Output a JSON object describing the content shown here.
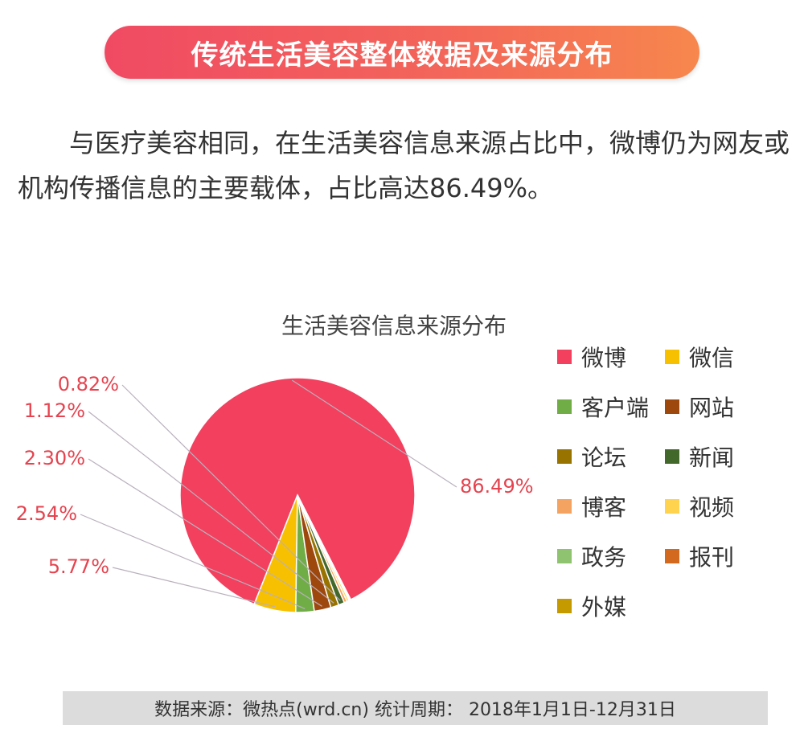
{
  "header": {
    "title": "传统生活美容整体数据及来源分布"
  },
  "intro": {
    "text": "与医疗美容相同，在生活美容信息来源占比中，微博仍为网友或机构传播信息的主要载体，占比高达86.49%。"
  },
  "chart_data": {
    "type": "pie",
    "title": "生活美容信息来源分布",
    "categories": [
      "微博",
      "微信",
      "客户端",
      "网站",
      "论坛",
      "新闻",
      "博客",
      "视频",
      "政务",
      "报刊",
      "外媒"
    ],
    "values": [
      86.49,
      5.77,
      2.54,
      2.3,
      1.12,
      0.82,
      0.4,
      0.3,
      0.1,
      0.1,
      0.06
    ],
    "data_labels": [
      {
        "category": "微博",
        "label": "86.49%"
      },
      {
        "category": "微信",
        "label": "5.77%"
      },
      {
        "category": "客户端",
        "label": "2.54%"
      },
      {
        "category": "网站",
        "label": "2.30%"
      },
      {
        "category": "论坛",
        "label": "1.12%"
      },
      {
        "category": "新闻",
        "label": "0.82%"
      }
    ],
    "colors": [
      "#f2405e",
      "#f7c000",
      "#70ad47",
      "#9e480e",
      "#997300",
      "#43682b",
      "#f4a460",
      "#ffd34e",
      "#8fc36f",
      "#d2691e",
      "#c49a00"
    ],
    "label_color": "#e5434f",
    "legend_position": "right"
  },
  "footer": {
    "source": "数据来源：微热点(wrd.cn)  统计周期：  2018年1月1日-12月31日"
  }
}
